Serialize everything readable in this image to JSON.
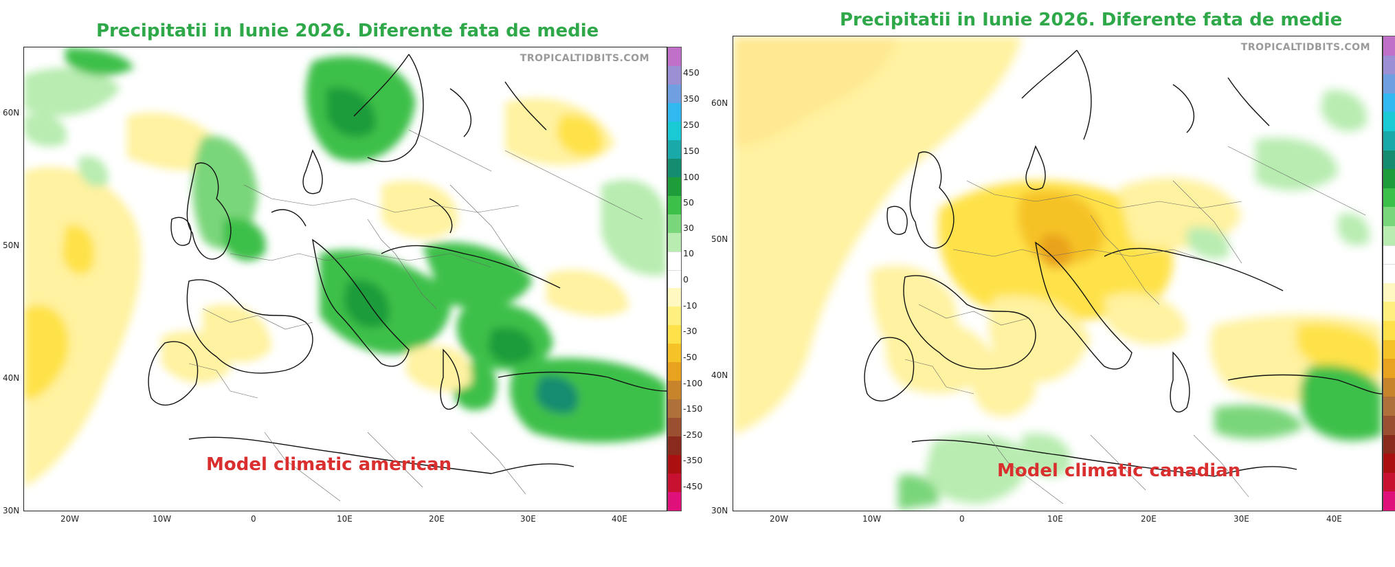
{
  "panels": [
    {
      "title": "Precipitatii in Iunie 2026. Diferente fata de medie",
      "watermark": "TROPICALTIDBITS.COM",
      "model_label": "Model climatic american",
      "lat_ticks": [
        "60N",
        "50N",
        "40N",
        "30N"
      ],
      "lon_ticks": [
        "20W",
        "10W",
        "0",
        "10E",
        "20E",
        "30E",
        "40E"
      ],
      "colorbar_labels": [
        "450",
        "350",
        "250",
        "150",
        "100",
        "50",
        "30",
        "10",
        "0",
        "-10",
        "-30",
        "-50",
        "-100",
        "-150",
        "-250",
        "-350",
        "-450"
      ]
    },
    {
      "title": "Precipitatii in Iunie 2026. Diferente fata de medie",
      "watermark": "TROPICALTIDBITS.COM",
      "model_label": "Model climatic canadian",
      "lat_ticks": [
        "60N",
        "50N",
        "40N",
        "30N"
      ],
      "lon_ticks": [
        "20W",
        "10W",
        "0",
        "10E",
        "20E",
        "30E",
        "40E"
      ],
      "colorbar_labels": []
    }
  ],
  "colors": {
    "title": "#2fa84a",
    "model_label": "#d92f2f",
    "colorbar": [
      "#c070c8",
      "#9c8fd4",
      "#6f9fe0",
      "#30b8f0",
      "#19c9d4",
      "#19a9a9",
      "#138c70",
      "#1f9c3a",
      "#3cc04a",
      "#7ad67a",
      "#b8ecb0",
      "#ffffff",
      "#ffffff",
      "#fff8c0",
      "#fff080",
      "#ffe24a",
      "#f5c228",
      "#e9a21e",
      "#c8842a",
      "#b0703a",
      "#9a5030",
      "#8a2a1c",
      "#aa1010",
      "#c81030",
      "#e0107a"
    ]
  }
}
